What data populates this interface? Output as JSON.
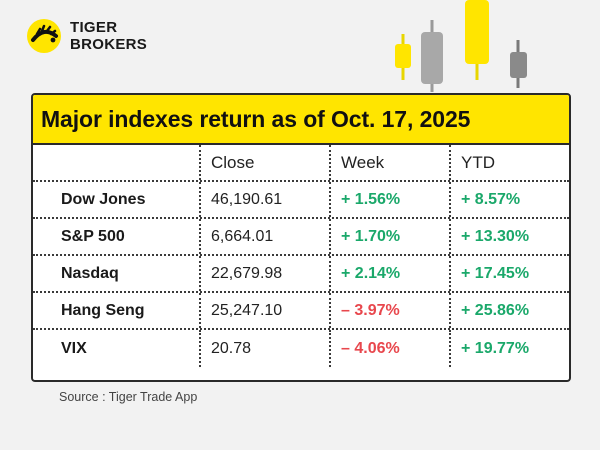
{
  "brand": {
    "line1": "TIGER",
    "line2": "BROKERS"
  },
  "title": "Major indexes return as of Oct. 17, 2025",
  "columns": [
    "",
    "Close",
    "Week",
    "YTD"
  ],
  "rows": [
    {
      "name": "Dow Jones",
      "close": "46,190.61",
      "week": "+ 1.56%",
      "ytd": "+ 8.57%"
    },
    {
      "name": "S&P 500",
      "close": "6,664.01",
      "week": "+ 1.70%",
      "ytd": "+ 13.30%"
    },
    {
      "name": "Nasdaq",
      "close": "22,679.98",
      "week": "+ 2.14%",
      "ytd": "+ 17.45%"
    },
    {
      "name": "Hang Seng",
      "close": "25,247.10",
      "week": "– 3.97%",
      "ytd": "+ 25.86%"
    },
    {
      "name": "VIX",
      "close": "20.78",
      "week": "– 4.06%",
      "ytd": "+ 19.77%"
    }
  ],
  "source": "Source : Tiger Trade App",
  "colors": {
    "accent_yellow": "#ffe500",
    "positive": "#1aa86a",
    "negative": "#e8474d",
    "border": "#2a2a2a"
  },
  "icons": {
    "logo": "tiger-logo-icon",
    "decoration": "candlestick-decoration"
  }
}
